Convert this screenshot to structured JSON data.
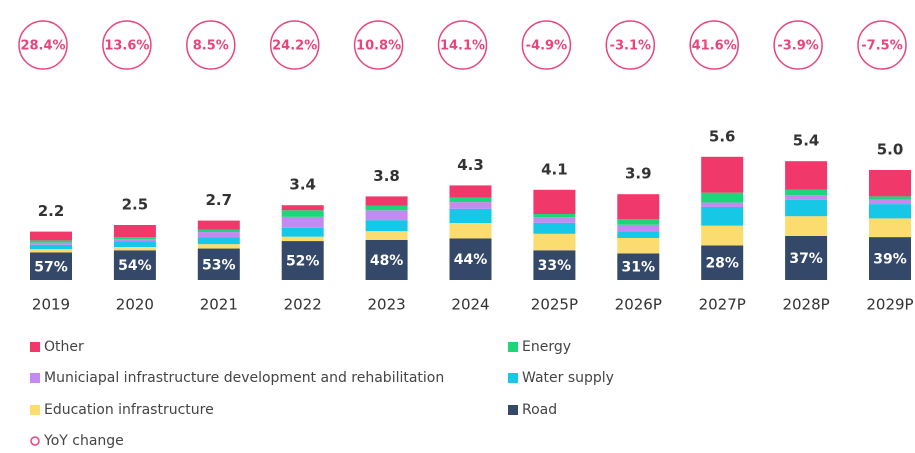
{
  "chart_data": {
    "type": "bar",
    "stacked": true,
    "categories": [
      "2019",
      "2020",
      "2021",
      "2022",
      "2023",
      "2024",
      "2025P",
      "2026P",
      "2027P",
      "2028P",
      "2029P"
    ],
    "series": [
      {
        "name": "Road",
        "color": "#34486a",
        "values": [
          1.25,
          1.35,
          1.43,
          1.77,
          1.82,
          1.89,
          1.35,
          1.21,
          1.57,
          2.0,
          1.95
        ]
      },
      {
        "name": "Education infrastructure",
        "color": "#fbdc6e",
        "values": [
          0.15,
          0.15,
          0.2,
          0.2,
          0.4,
          0.7,
          0.75,
          0.7,
          0.9,
          0.9,
          0.85
        ]
      },
      {
        "name": "Water supply",
        "color": "#17c8e6",
        "values": [
          0.2,
          0.25,
          0.3,
          0.4,
          0.5,
          0.65,
          0.5,
          0.3,
          0.85,
          0.75,
          0.65
        ]
      },
      {
        "name": "Municiapal infrastructure development and rehabilitation",
        "color": "#c58af0",
        "values": [
          0.1,
          0.1,
          0.25,
          0.5,
          0.45,
          0.3,
          0.25,
          0.3,
          0.2,
          0.2,
          0.2
        ]
      },
      {
        "name": "Energy",
        "color": "#1ed67a",
        "values": [
          0.1,
          0.1,
          0.1,
          0.3,
          0.2,
          0.2,
          0.15,
          0.25,
          0.45,
          0.25,
          0.15
        ]
      },
      {
        "name": "Other",
        "color": "#f0386b",
        "values": [
          0.4,
          0.55,
          0.42,
          0.23,
          0.43,
          0.56,
          1.1,
          1.14,
          1.63,
          1.3,
          1.2
        ]
      }
    ],
    "totals": {
      "values": [
        2.2,
        2.5,
        2.7,
        3.4,
        3.8,
        4.3,
        4.1,
        3.9,
        5.6,
        5.4,
        5.0
      ],
      "value_labels": [
        "2.2",
        "2.5",
        "2.7",
        "3.4",
        "3.8",
        "4.3",
        "4.1",
        "3.9",
        "5.6",
        "5.4",
        "5.0"
      ]
    },
    "road_share": {
      "values": [
        57,
        54,
        53,
        52,
        48,
        44,
        33,
        31,
        28,
        37,
        39
      ],
      "value_labels": [
        "57%",
        "54%",
        "53%",
        "52%",
        "48%",
        "44%",
        "33%",
        "31%",
        "28%",
        "37%",
        "39%"
      ]
    },
    "yoy": {
      "name": "YoY change",
      "color": "#e8457a",
      "values": [
        28.4,
        13.6,
        8.5,
        24.2,
        10.8,
        14.1,
        -4.9,
        -3.1,
        41.6,
        -3.9,
        -7.5
      ],
      "value_labels": [
        "28.4%",
        "13.6%",
        "8.5%",
        "24.2%",
        "10.8%",
        "14.1%",
        "-4.9%",
        "-3.1%",
        "41.6%",
        "-3.9%",
        "-7.5%"
      ]
    }
  }
}
